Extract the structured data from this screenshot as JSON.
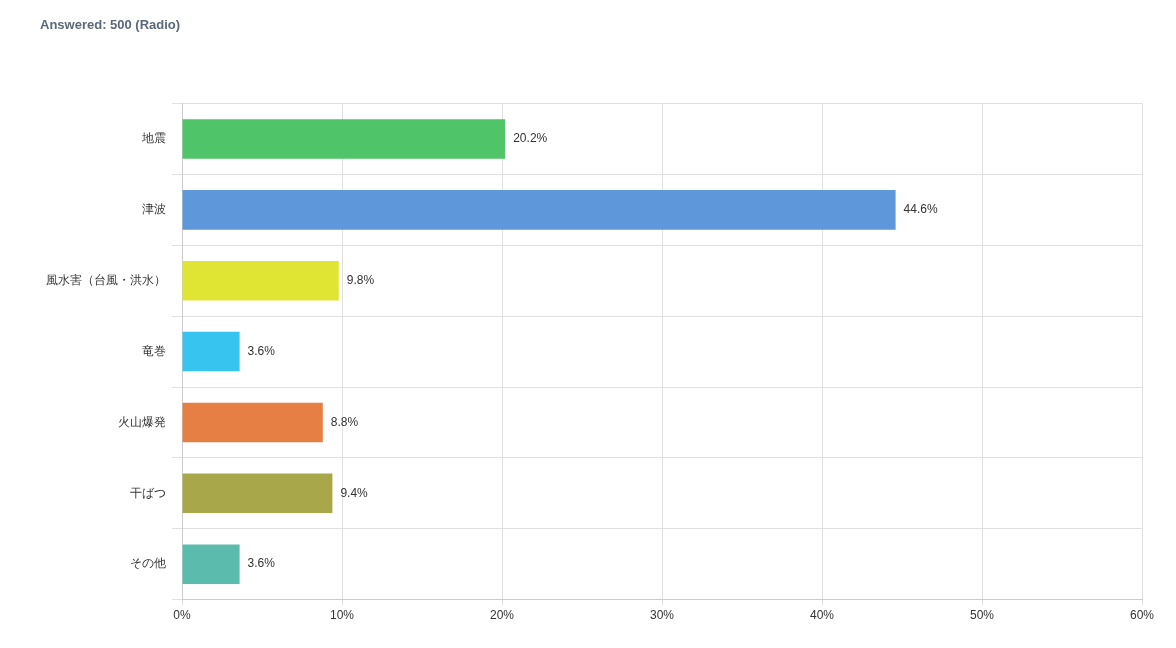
{
  "chart_data": {
    "type": "bar",
    "orientation": "horizontal",
    "title": "Answered: 500 (Radio)",
    "categories": [
      "地震",
      "津波",
      "風水害（台風・洪水）",
      "竜巻",
      "火山爆発",
      "干ばつ",
      "その他"
    ],
    "values": [
      20.2,
      44.6,
      9.8,
      3.6,
      8.8,
      9.4,
      3.6
    ],
    "value_labels": [
      "20.2%",
      "44.6%",
      "9.8%",
      "3.6%",
      "8.8%",
      "9.4%",
      "3.6%"
    ],
    "colors": [
      "#50c468",
      "#5f97db",
      "#e0e534",
      "#37c5ef",
      "#e57f43",
      "#a8a84a",
      "#5bbbad"
    ],
    "xlim": [
      0,
      60
    ],
    "xticks": [
      {
        "value": 0,
        "label": "0%"
      },
      {
        "value": 10,
        "label": "10%"
      },
      {
        "value": 20,
        "label": "20%"
      },
      {
        "value": 30,
        "label": "30%"
      },
      {
        "value": 40,
        "label": "40%"
      },
      {
        "value": 50,
        "label": "50%"
      },
      {
        "value": 60,
        "label": "60%"
      }
    ],
    "grid": true,
    "data_labels": true
  }
}
